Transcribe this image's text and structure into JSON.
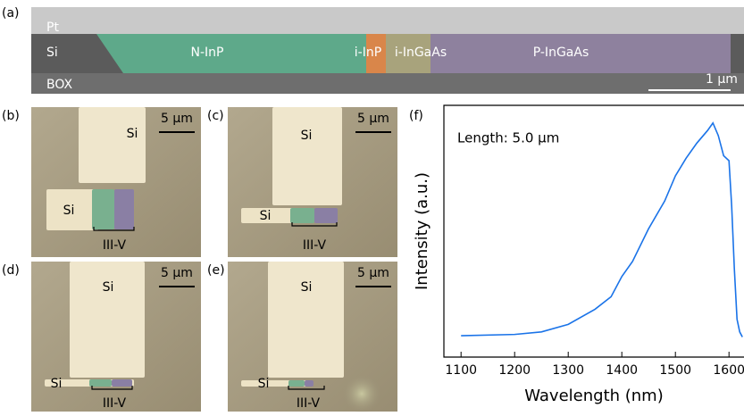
{
  "panel_a": {
    "label": "(a)",
    "layers": {
      "pt": "Pt",
      "si": "Si",
      "box": "BOX"
    },
    "segments": [
      "N-InP",
      "i-InP",
      "i-InGaAs",
      "P-InGaAs"
    ],
    "scale_bar": "1 µm"
  },
  "panels": [
    {
      "label": "(b)",
      "scale_bar": "5 µm",
      "si_top": "Si",
      "si_pad": "Si",
      "iii_v": "III-V"
    },
    {
      "label": "(c)",
      "scale_bar": "5 µm",
      "si_top": "Si",
      "si_pad": "Si",
      "iii_v": "III-V"
    },
    {
      "label": "(d)",
      "scale_bar": "5 µm",
      "si_top": "Si",
      "si_pad": "Si",
      "iii_v": "III-V"
    },
    {
      "label": "(e)",
      "scale_bar": "5 µm",
      "si_top": "Si",
      "si_pad": "Si",
      "iii_v": "III-V"
    }
  ],
  "chart_data": {
    "type": "line",
    "label": "(f)",
    "annotation": "Length: 5.0 µm",
    "x_label": "Wavelength (nm)",
    "y_label": "Intensity (a.u.)",
    "x": [
      1100,
      1200,
      1250,
      1300,
      1350,
      1380,
      1400,
      1420,
      1450,
      1480,
      1500,
      1520,
      1540,
      1560,
      1570,
      1580,
      1590,
      1600,
      1605,
      1610,
      1615,
      1620,
      1625
    ],
    "series": [
      {
        "name": "Length: 5.0 µm",
        "color": "#1a73e8",
        "values": [
          0.085,
          0.09,
          0.1,
          0.13,
          0.19,
          0.24,
          0.32,
          0.38,
          0.51,
          0.62,
          0.72,
          0.79,
          0.85,
          0.9,
          0.93,
          0.88,
          0.8,
          0.78,
          0.6,
          0.35,
          0.15,
          0.1,
          0.08
        ]
      }
    ],
    "xlim": [
      1068,
      1628
    ],
    "ylim": [
      0,
      1
    ],
    "xticks": [
      1100,
      1200,
      1300,
      1400,
      1500,
      1600
    ]
  }
}
